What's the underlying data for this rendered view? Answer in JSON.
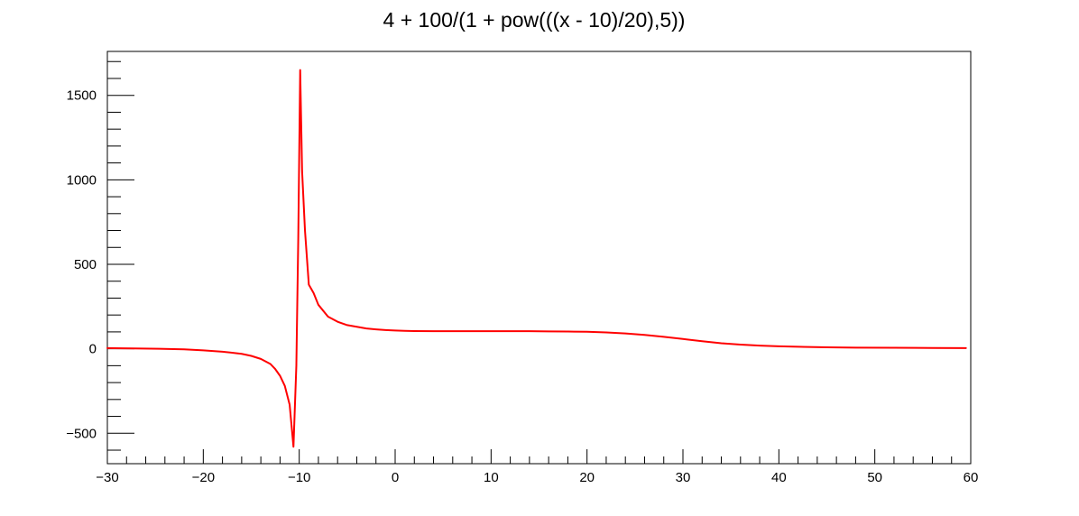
{
  "chart_data": {
    "type": "line",
    "title": "4 + 100/(1 + pow(((x - 10)/20),5))",
    "xlabel": "",
    "ylabel": "",
    "xlim": [
      -30,
      60
    ],
    "ylim": [
      -680,
      1760
    ],
    "x_ticks": [
      {
        "value": -30,
        "label": "−30"
      },
      {
        "value": -20,
        "label": "−20"
      },
      {
        "value": -10,
        "label": "−10"
      },
      {
        "value": 0,
        "label": "0"
      },
      {
        "value": 10,
        "label": "10"
      },
      {
        "value": 20,
        "label": "20"
      },
      {
        "value": 30,
        "label": "30"
      },
      {
        "value": 40,
        "label": "40"
      },
      {
        "value": 50,
        "label": "50"
      },
      {
        "value": 60,
        "label": "60"
      }
    ],
    "y_ticks": [
      {
        "value": -500,
        "label": "−500"
      },
      {
        "value": 0,
        "label": "0"
      },
      {
        "value": 500,
        "label": "500"
      },
      {
        "value": 1000,
        "label": "1000"
      },
      {
        "value": 1500,
        "label": "1500"
      }
    ],
    "grid": false,
    "legend": "none",
    "colors": {
      "line": "#ff0000",
      "frame": "#000000",
      "background": "#ffffff"
    },
    "series": [
      {
        "x": [
          -30,
          -27.3,
          -24.6,
          -22,
          -20,
          -18,
          -16,
          -15,
          -14,
          -13,
          -12.5,
          -12,
          -11.5,
          -11,
          -10.6,
          -10.3,
          -10.1,
          -9.9,
          -9.7,
          -9.4,
          -9,
          -8.5,
          -8,
          -7,
          -6,
          -5,
          -4,
          -3,
          -2,
          -1,
          0,
          1,
          2,
          4,
          6,
          8,
          10,
          12,
          14,
          16,
          18,
          20,
          22,
          24,
          26,
          28,
          30,
          32,
          34,
          36,
          38,
          40,
          42,
          45,
          48,
          52,
          56,
          59.5
        ],
        "values": [
          4,
          2,
          0,
          -3,
          -9,
          -17,
          -30,
          -42,
          -60,
          -90,
          -120,
          -160,
          -220,
          -330,
          -580,
          -100,
          650,
          1650,
          1050,
          700,
          380,
          330,
          260,
          190,
          160,
          140,
          130,
          120,
          115,
          111,
          108,
          106,
          105,
          104,
          104,
          104,
          104,
          104,
          104,
          103,
          102,
          101,
          97,
          91,
          82,
          71,
          58,
          45,
          33,
          25,
          19,
          15,
          12,
          9,
          7,
          6,
          5,
          4
        ]
      }
    ]
  }
}
